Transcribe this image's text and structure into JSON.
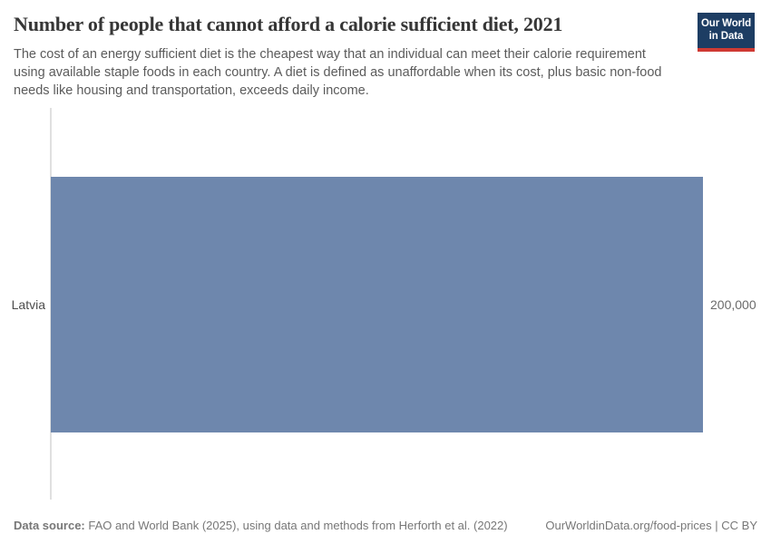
{
  "header": {
    "title": "Number of people that cannot afford a calorie sufficient diet, 2021",
    "subtitle": "The cost of an energy sufficient diet is the cheapest way that an individual can meet their calorie requirement using available staple foods in each country. A diet is defined as unaffordable when its cost, plus basic non-food needs like housing and transportation, exceeds daily income."
  },
  "logo": {
    "line1": "Our World",
    "line2": "in Data"
  },
  "chart_data": {
    "type": "bar",
    "orientation": "horizontal",
    "categories": [
      "Latvia"
    ],
    "values": [
      200000
    ],
    "value_labels": [
      "200,000"
    ],
    "title": "Number of people that cannot afford a calorie sufficient diet, 2021",
    "xlabel": "",
    "ylabel": "",
    "xlim": [
      0,
      200000
    ],
    "grid": false,
    "legend": "none",
    "year": "2021"
  },
  "footer": {
    "source_label": "Data source:",
    "source_text": " FAO and World Bank (2025), using data and methods from Herforth et al. (2022)",
    "link": "OurWorldinData.org/food-prices",
    "license": " | CC BY"
  },
  "colors": {
    "bar": "#6e87ad",
    "logo_bg": "#1d3d63",
    "logo_accent": "#cf3a33",
    "axis_line": "#e0e0e0"
  }
}
